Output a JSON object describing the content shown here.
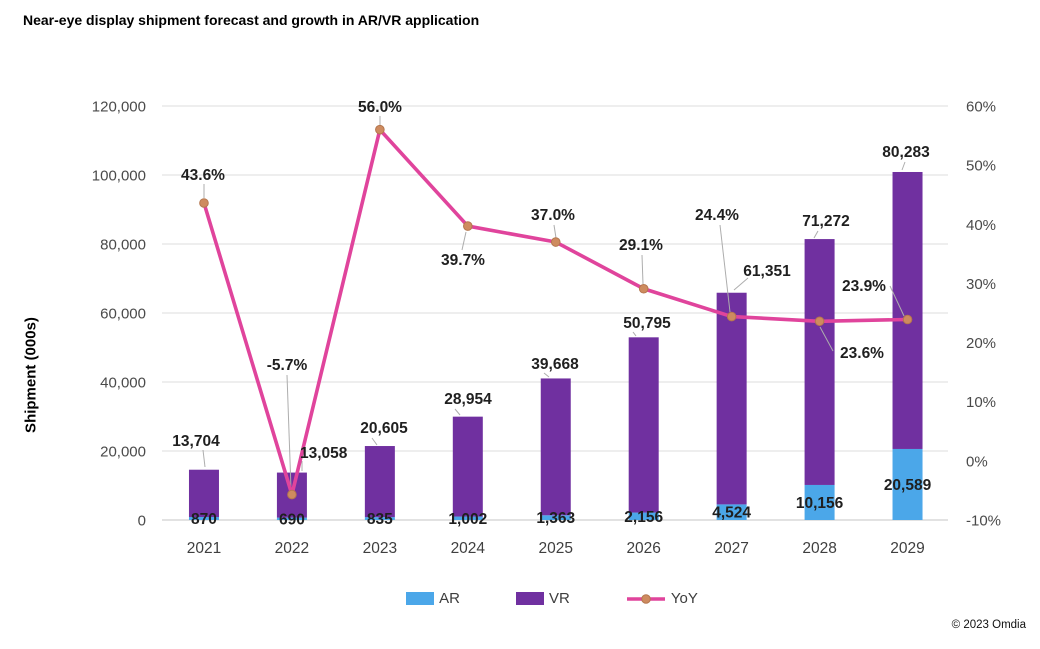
{
  "page": {
    "copyright": "© 2023 Omdia"
  },
  "chart_data": {
    "type": "bar",
    "subtype": "stacked-bars-with-yoy-line",
    "title": "Near-eye display shipment forecast and growth in AR/VR application",
    "ylabel_left": "Shipment (000s)",
    "axis_left": {
      "min": 0,
      "max": 120000,
      "tick_values": [
        0,
        20000,
        40000,
        60000,
        80000,
        100000,
        120000
      ],
      "tick_labels": [
        "0",
        "20,000",
        "40,000",
        "60,000",
        "80,000",
        "100,000",
        "120,000"
      ]
    },
    "axis_right": {
      "min": -10,
      "max": 60,
      "tick_values": [
        -10,
        0,
        10,
        20,
        30,
        40,
        50,
        60
      ],
      "tick_labels": [
        "-10%",
        "0%",
        "10%",
        "20%",
        "30%",
        "40%",
        "50%",
        "60%"
      ]
    },
    "categories": [
      "2021",
      "2022",
      "2023",
      "2024",
      "2025",
      "2026",
      "2027",
      "2028",
      "2029"
    ],
    "series": [
      {
        "name": "AR",
        "type": "bar",
        "stack": true,
        "color": "#4BA7E9",
        "values": [
          870,
          690,
          835,
          1002,
          1363,
          2156,
          4524,
          10156,
          20589
        ],
        "labels": [
          "870",
          "690",
          "835",
          "1,002",
          "1,363",
          "2,156",
          "4,524",
          "10,156",
          "20,589"
        ]
      },
      {
        "name": "VR",
        "type": "bar",
        "stack": true,
        "color": "#7030A0",
        "values": [
          13704,
          13058,
          20605,
          28954,
          39668,
          50795,
          61351,
          71272,
          80283
        ],
        "labels": [
          "13,704",
          "13,058",
          "20,605",
          "28,954",
          "39,668",
          "50,795",
          "61,351",
          "71,272",
          "80,283"
        ]
      },
      {
        "name": "YoY",
        "type": "line",
        "axis": "right",
        "color": "#E0449C",
        "marker_color": "#CE8B5F",
        "values": [
          43.6,
          -5.7,
          56.0,
          39.7,
          37.0,
          29.1,
          24.4,
          23.6,
          23.9
        ],
        "labels": [
          "43.6%",
          "-5.7%",
          "56.0%",
          "39.7%",
          "37.0%",
          "29.1%",
          "24.4%",
          "23.6%",
          "23.9%"
        ]
      }
    ],
    "grid": true,
    "legend_position": "bottom",
    "colors": {
      "grid": "#DCDCDC",
      "axis_line": "#C6C6C6",
      "leader": "#ADADAD",
      "tick_text": "#4A4A4A",
      "year_text": "#3F3F3F",
      "label_text": "#1F1F1F"
    }
  },
  "legend": {
    "items": [
      "AR",
      "VR",
      "YoY"
    ]
  }
}
